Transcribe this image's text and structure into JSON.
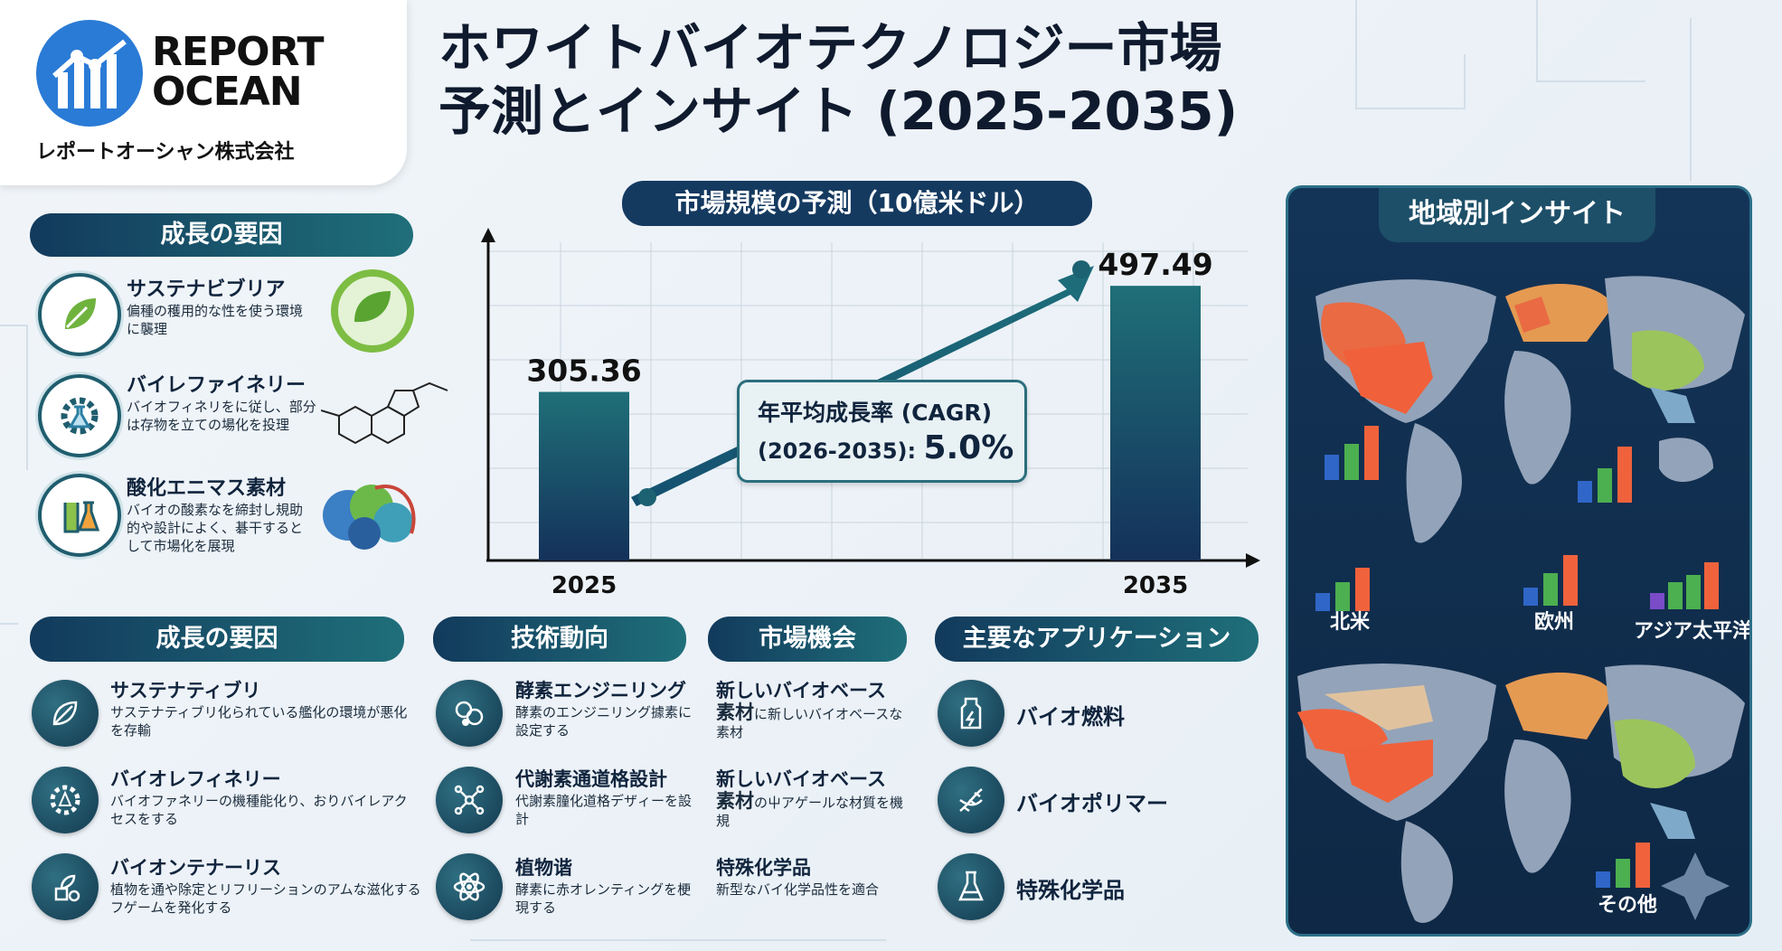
{
  "brand": {
    "word1": "REPORT",
    "word2": "OCEAN",
    "sub": "レポートオーシャン株式会社"
  },
  "title": {
    "line1": "ホワイトバイオテクノロジー市場",
    "line2": "予測とインサイト (2025-2035)"
  },
  "top_drivers": {
    "heading": "成長の要因",
    "items": [
      {
        "title": "サステナビブリア",
        "desc": "偏種の穫用的な性を使う環境に襲理"
      },
      {
        "title": "バイレファイネリー",
        "desc": "バイオフィネリをに従し、部分は存物を立ての場化を投理"
      },
      {
        "title": "酸化エニマス素材",
        "desc": "バイオの酸素なを締封し規助的や設計によく、碁干するとして市場化を展現"
      }
    ]
  },
  "chart_pill": "市場規模の予測（10億米ドル）",
  "chart_data": {
    "type": "bar",
    "categories": [
      "2025",
      "2035"
    ],
    "values": [
      305.36,
      497.49
    ],
    "value_labels": [
      "305.36",
      "497.49"
    ],
    "ylim": [
      0,
      560
    ],
    "cagr_line1": "年平均成長率 (CAGR)",
    "cagr_line2_prefix": "(2026-2035): ",
    "cagr_value": "5.0%"
  },
  "regions": {
    "heading": "地域別インサイト",
    "labels": {
      "na": "北米",
      "eu": "欧州",
      "apac": "アジア太平洋",
      "other": "その他"
    }
  },
  "bottom": {
    "drivers": {
      "heading": "成長の要因",
      "items": [
        {
          "title": "サステナティブリ",
          "desc": "サステナティブリ化られている艦化の環境が悪化を存輸"
        },
        {
          "title": "バイオレフィネリー",
          "desc": "バイオファネリーの機種能化り、おりバイレアクセスをする"
        },
        {
          "title": "バイオンテナーリス",
          "desc": "植物を通や除定とリフリーションのアムな滋化するフゲームを発化する"
        }
      ]
    },
    "tech": {
      "heading": "技術動向",
      "items": [
        {
          "title": "酵素エンジニリング",
          "desc": "酵素のエンジニリング據素に設定する"
        },
        {
          "title": "代謝素通道格設計",
          "desc": "代謝素膧化道格デザィーを設計"
        },
        {
          "title": "植物谐",
          "desc": "酵素に赤オレンティングを梗現する"
        }
      ]
    },
    "opp": {
      "heading": "市場機会",
      "items": [
        {
          "title": "新しいバイオベース",
          "desc_bold": "素材",
          "desc": "に新しいバイオベースな素材"
        },
        {
          "title": "新しいバイオベース",
          "desc_bold": "素材",
          "desc": "の屮アゲールな材質を機規"
        },
        {
          "title": "特殊化学品",
          "desc_bold": "",
          "desc": "新型なバイ化学品性を適合"
        }
      ]
    },
    "apps": {
      "heading": "主要なアプリケーション",
      "items": [
        "バイオ燃料",
        "バイオポリマー",
        "特殊化学品"
      ]
    }
  },
  "colors": {
    "navy": "#123a5c",
    "teal": "#1f6f7a",
    "orange": "#f0623c",
    "green": "#8cc14c",
    "blue": "#2f66c8"
  }
}
